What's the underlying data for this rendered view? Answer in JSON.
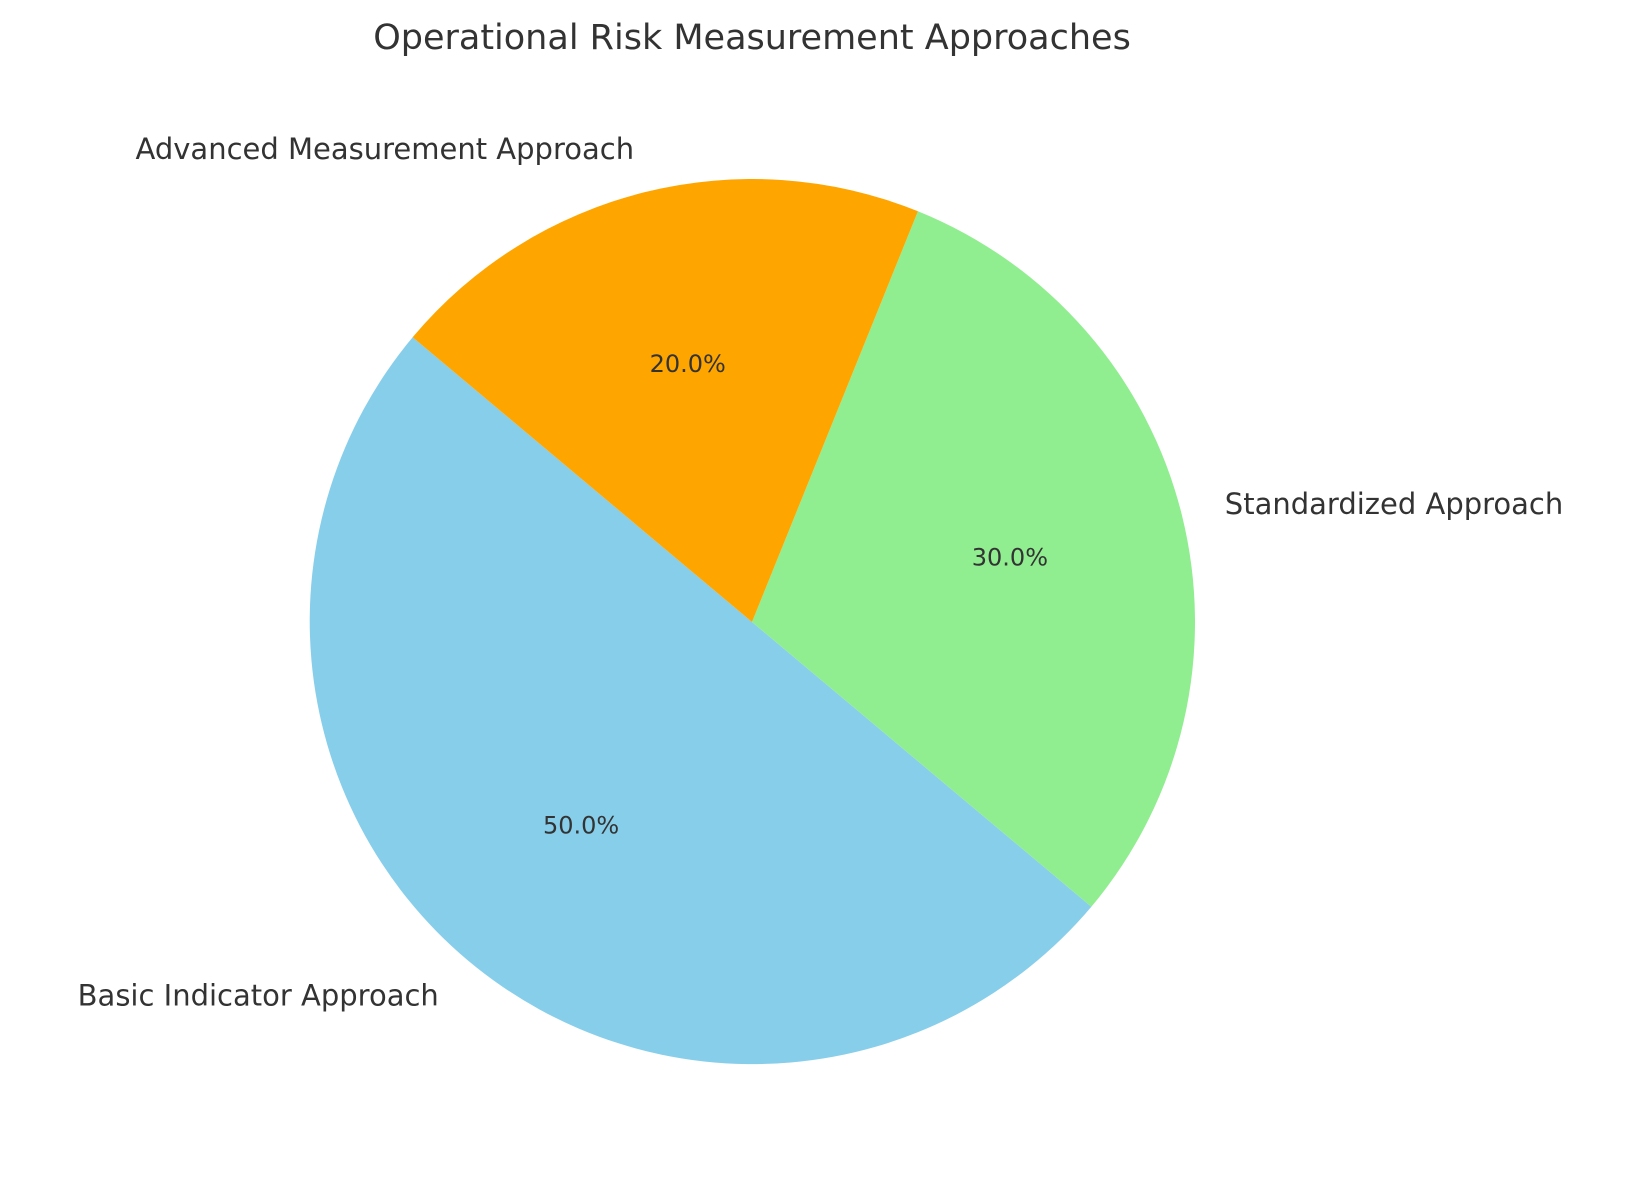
{
  "chart_data": {
    "type": "pie",
    "title": "Operational Risk Measurement Approaches",
    "slices": [
      {
        "label": "Basic Indicator Approach",
        "value": 50.0,
        "pct_label": "50.0%",
        "color": "#87CEEB"
      },
      {
        "label": "Standardized Approach",
        "value": 30.0,
        "pct_label": "30.0%",
        "color": "#90EE90"
      },
      {
        "label": "Advanced Measurement Approach",
        "value": 20.0,
        "pct_label": "20.0%",
        "color": "#FFA500"
      }
    ],
    "start_angle_deg": 140,
    "direction": "counterclockwise",
    "legend": "none"
  }
}
